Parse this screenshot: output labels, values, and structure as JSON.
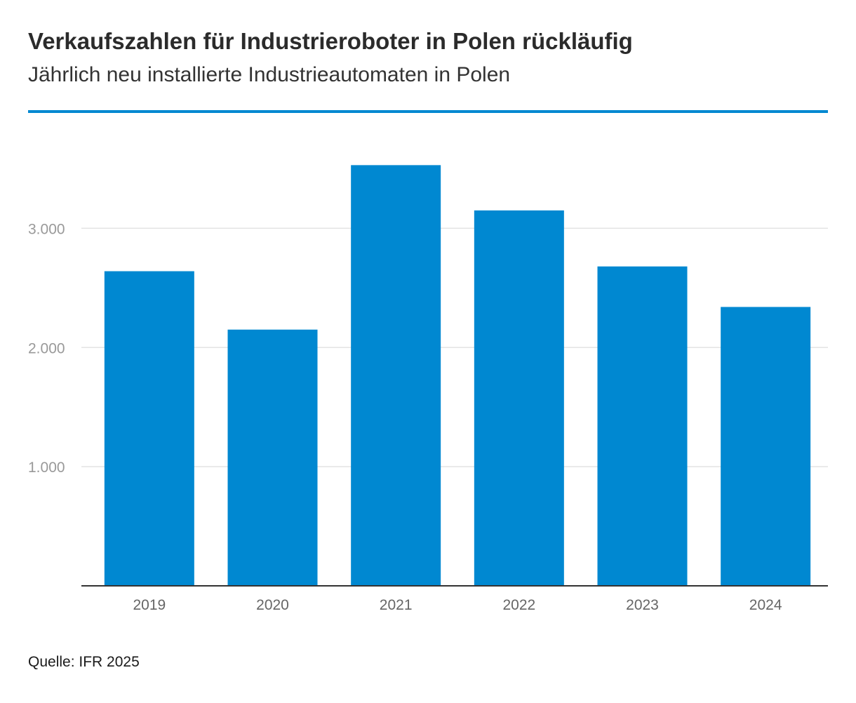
{
  "header": {
    "title": "Verkaufszahlen für Industrieroboter in Polen rückläufig",
    "subtitle": "Jährlich neu installierte Industrieautomaten in Polen"
  },
  "footer": {
    "source": "Quelle: IFR 2025"
  },
  "colors": {
    "bar": "#0088d1",
    "accent_rule": "#0088d1",
    "gridline": "#e3e3e3",
    "axis": "#333333"
  },
  "chart_data": {
    "type": "bar",
    "categories": [
      "2019",
      "2020",
      "2021",
      "2022",
      "2023",
      "2024"
    ],
    "values": [
      2640,
      2150,
      3530,
      3150,
      2680,
      2340
    ],
    "yticks": [
      1000,
      2000,
      3000
    ],
    "ytick_labels": [
      "1.000",
      "2.000",
      "3.000"
    ],
    "ylim": [
      0,
      3750
    ],
    "grid": true,
    "legend": "none",
    "title": "Verkaufszahlen für Industrieroboter in Polen rückläufig",
    "subtitle": "Jährlich neu installierte Industrieautomaten in Polen",
    "xlabel": "",
    "ylabel": ""
  }
}
